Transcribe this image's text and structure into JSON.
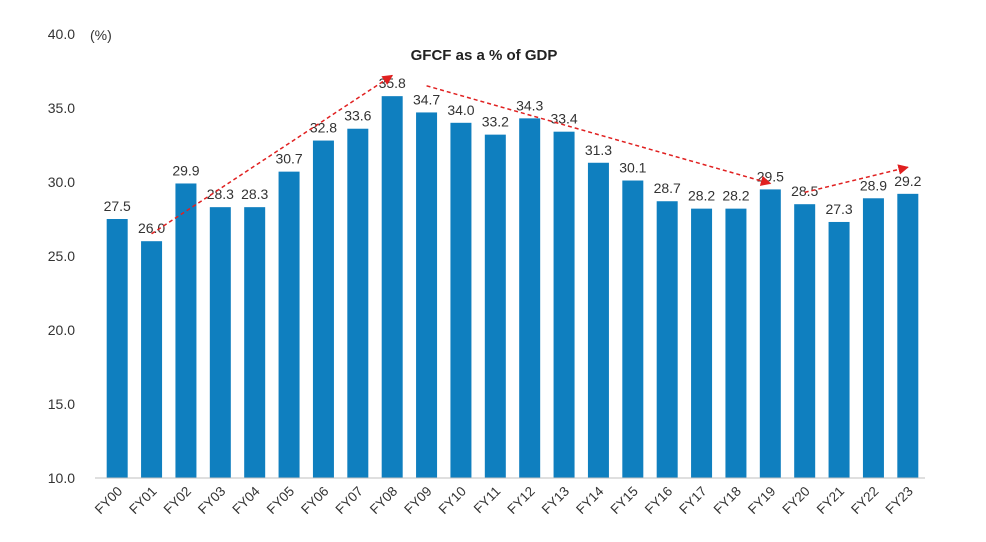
{
  "chart_data": {
    "type": "bar",
    "title": "GFCF as a % of GDP",
    "ylabel": "(%)",
    "xlabel": "",
    "ylim": [
      10,
      40
    ],
    "yticks": [
      10,
      15,
      20,
      25,
      30,
      35,
      40
    ],
    "grid": false,
    "bar_color": "#0F7FBF",
    "arrow_color": "#E02020",
    "categories": [
      "FY00",
      "FY01",
      "FY02",
      "FY03",
      "FY04",
      "FY05",
      "FY06",
      "FY07",
      "FY08",
      "FY09",
      "FY10",
      "FY11",
      "FY12",
      "FY13",
      "FY14",
      "FY15",
      "FY16",
      "FY17",
      "FY18",
      "FY19",
      "FY20",
      "FY21",
      "FY22",
      "FY23"
    ],
    "values": [
      27.5,
      26.0,
      29.9,
      28.3,
      28.3,
      30.7,
      32.8,
      33.6,
      35.8,
      34.7,
      34.0,
      33.2,
      34.3,
      33.4,
      31.3,
      30.1,
      28.7,
      28.2,
      28.2,
      29.5,
      28.5,
      27.3,
      28.9,
      29.2
    ],
    "value_labels": [
      "27.5",
      "26.0",
      "29.9",
      "28.3",
      "28.3",
      "30.7",
      "32.8",
      "33.6",
      "35.8",
      "34.7",
      "34.0",
      "33.2",
      "34.3",
      "33.4",
      "31.3",
      "30.1",
      "28.7",
      "28.2",
      "28.2",
      "29.5",
      "28.5",
      "27.3",
      "28.9",
      "29.2"
    ],
    "trend_arrows": [
      {
        "from": [
          "FY01",
          26.5
        ],
        "to": [
          "FY08",
          37.2
        ]
      },
      {
        "from": [
          "FY09",
          36.5
        ],
        "to": [
          "FY19",
          29.9
        ]
      },
      {
        "from": [
          "FY20",
          29.3
        ],
        "to": [
          "FY23",
          31.0
        ]
      }
    ]
  }
}
